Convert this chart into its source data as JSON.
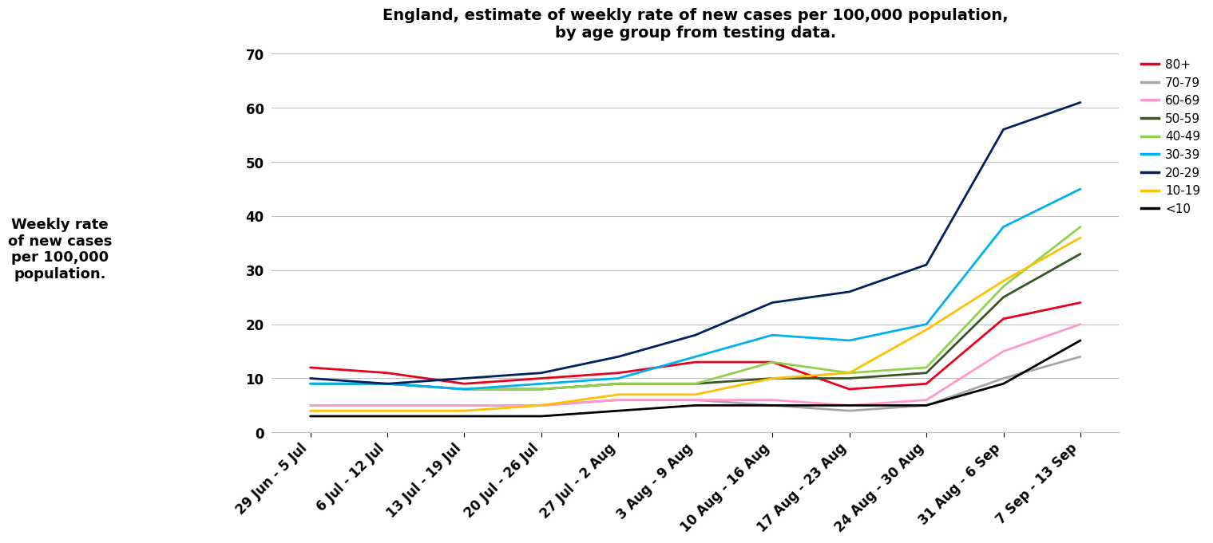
{
  "title": "England, estimate of weekly rate of new cases per 100,000 population,\nby age group from testing data.",
  "ylabel_lines": [
    "Weekly rate",
    "of new cases",
    "per 100,000",
    "population."
  ],
  "x_labels": [
    "29 Jun - 5 Jul",
    "6 Jul - 12 Jul",
    "13 Jul - 19 Jul",
    "20 Jul - 26 Jul",
    "27 Jul - 2 Aug",
    "3 Aug - 9 Aug",
    "10 Aug - 16 Aug",
    "17 Aug - 23 Aug",
    "24 Aug - 30 Aug",
    "31 Aug - 6 Sep",
    "7 Sep - 13 Sep"
  ],
  "series": {
    "80+": [
      12,
      11,
      9,
      10,
      11,
      13,
      13,
      8,
      9,
      21,
      24
    ],
    "70-79": [
      5,
      5,
      5,
      5,
      6,
      6,
      5,
      4,
      5,
      10,
      14
    ],
    "60-69": [
      5,
      5,
      5,
      5,
      6,
      6,
      6,
      5,
      6,
      15,
      20
    ],
    "50-59": [
      9,
      9,
      8,
      8,
      9,
      9,
      10,
      10,
      11,
      25,
      33
    ],
    "40-49": [
      9,
      9,
      8,
      8,
      9,
      9,
      13,
      11,
      12,
      27,
      38
    ],
    "30-39": [
      9,
      9,
      8,
      9,
      10,
      14,
      18,
      17,
      20,
      38,
      45
    ],
    "20-29": [
      10,
      9,
      10,
      11,
      14,
      18,
      24,
      26,
      31,
      56,
      61
    ],
    "10-19": [
      4,
      4,
      4,
      5,
      7,
      7,
      10,
      11,
      19,
      28,
      36
    ],
    "<10": [
      3,
      3,
      3,
      3,
      4,
      5,
      5,
      5,
      5,
      9,
      17
    ]
  },
  "colors": {
    "80+": "#e8001c",
    "70-79": "#a6a6a6",
    "60-69": "#ff99cc",
    "50-59": "#375623",
    "40-49": "#92d050",
    "30-39": "#00b0f0",
    "20-29": "#002060",
    "10-19": "#ffc000",
    "<10": "#000000"
  },
  "ylim": [
    0,
    70
  ],
  "yticks": [
    0,
    10,
    20,
    30,
    40,
    50,
    60,
    70
  ],
  "background_color": "#ffffff",
  "title_fontsize": 14,
  "tick_fontsize": 12,
  "legend_fontsize": 11,
  "ylabel_fontsize": 13
}
